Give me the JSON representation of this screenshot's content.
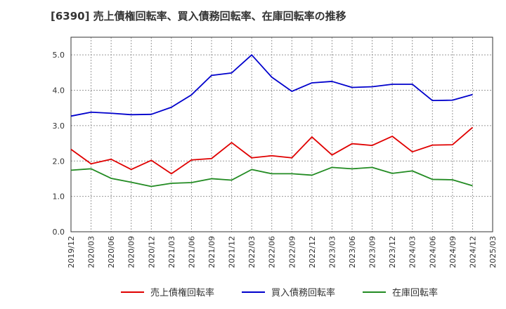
{
  "chart_data": {
    "type": "line",
    "title": "[6390]  売上債権回転率、買入債務回転率、在庫回転率の推移",
    "xlabel": "",
    "ylabel": "",
    "ylim": [
      0,
      5.5
    ],
    "yticks": [
      0.0,
      1.0,
      2.0,
      3.0,
      4.0,
      5.0
    ],
    "ytick_labels": [
      "0.0",
      "1.0",
      "2.0",
      "3.0",
      "4.0",
      "5.0"
    ],
    "grid": true,
    "legend_position": "bottom",
    "categories": [
      "2019/12",
      "2020/03",
      "2020/06",
      "2020/09",
      "2020/12",
      "2021/03",
      "2021/06",
      "2021/09",
      "2021/12",
      "2022/03",
      "2022/06",
      "2022/09",
      "2022/12",
      "2023/03",
      "2023/06",
      "2023/09",
      "2023/12",
      "2024/03",
      "2024/06",
      "2024/09",
      "2024/12",
      "2025/03"
    ],
    "series": [
      {
        "name": "売上債権回転率",
        "color": "#e00000",
        "values": [
          2.33,
          1.92,
          2.05,
          1.76,
          2.02,
          1.64,
          2.03,
          2.07,
          2.52,
          2.09,
          2.15,
          2.09,
          2.68,
          2.17,
          2.49,
          2.44,
          2.7,
          2.26,
          2.45,
          2.46,
          2.95,
          null
        ]
      },
      {
        "name": "買入債務回転率",
        "color": "#0000cc",
        "values": [
          3.27,
          3.38,
          3.35,
          3.31,
          3.32,
          3.52,
          3.87,
          4.42,
          4.49,
          5.0,
          4.37,
          3.97,
          4.21,
          4.25,
          4.08,
          4.1,
          4.17,
          4.17,
          3.71,
          3.72,
          3.88,
          null
        ]
      },
      {
        "name": "在庫回転率",
        "color": "#228b22",
        "values": [
          1.74,
          1.78,
          1.51,
          1.4,
          1.28,
          1.37,
          1.39,
          1.5,
          1.46,
          1.76,
          1.64,
          1.64,
          1.6,
          1.82,
          1.78,
          1.82,
          1.65,
          1.72,
          1.48,
          1.47,
          1.3,
          null
        ]
      }
    ]
  }
}
